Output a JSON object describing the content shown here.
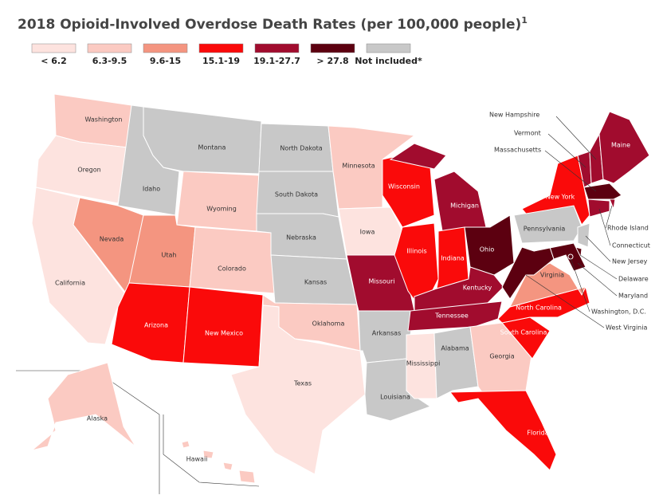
{
  "title": "2018 Opioid-Involved Overdose Death Rates (per 100,000 people)",
  "title_note": "1",
  "legend": [
    {
      "label": "< 6.2",
      "color": "#fde3df"
    },
    {
      "label": "6.3-9.5",
      "color": "#fbcac2"
    },
    {
      "label": "9.6-15",
      "color": "#f49580"
    },
    {
      "label": "15.1-19",
      "color": "#fa0a0a"
    },
    {
      "label": "19.1-27.7",
      "color": "#a10c2e"
    },
    {
      "label": "> 27.8",
      "color": "#5c0010"
    },
    {
      "label": "Not included*",
      "color": "#c8c8c8"
    }
  ],
  "states": [
    {
      "name": "Washington",
      "color": "#fbcac2"
    },
    {
      "name": "Oregon",
      "color": "#fde3df"
    },
    {
      "name": "California",
      "color": "#fde3df"
    },
    {
      "name": "Nevada",
      "color": "#f49580"
    },
    {
      "name": "Idaho",
      "color": "#c8c8c8"
    },
    {
      "name": "Montana",
      "color": "#c8c8c8"
    },
    {
      "name": "Wyoming",
      "color": "#fbcac2"
    },
    {
      "name": "Utah",
      "color": "#f49580"
    },
    {
      "name": "Colorado",
      "color": "#fbcac2"
    },
    {
      "name": "Arizona",
      "color": "#fa0a0a"
    },
    {
      "name": "New Mexico",
      "color": "#fa0a0a"
    },
    {
      "name": "North Dakota",
      "color": "#c8c8c8"
    },
    {
      "name": "South Dakota",
      "color": "#c8c8c8"
    },
    {
      "name": "Nebraska",
      "color": "#c8c8c8"
    },
    {
      "name": "Kansas",
      "color": "#c8c8c8"
    },
    {
      "name": "Oklahoma",
      "color": "#fbcac2"
    },
    {
      "name": "Texas",
      "color": "#fde3df"
    },
    {
      "name": "Minnesota",
      "color": "#fbcac2"
    },
    {
      "name": "Iowa",
      "color": "#fde3df"
    },
    {
      "name": "Missouri",
      "color": "#a10c2e"
    },
    {
      "name": "Arkansas",
      "color": "#c8c8c8"
    },
    {
      "name": "Louisiana",
      "color": "#c8c8c8"
    },
    {
      "name": "Wisconsin",
      "color": "#fa0a0a"
    },
    {
      "name": "Illinois",
      "color": "#fa0a0a"
    },
    {
      "name": "Michigan",
      "color": "#a10c2e"
    },
    {
      "name": "Indiana",
      "color": "#fa0a0a"
    },
    {
      "name": "Ohio",
      "color": "#5c0010"
    },
    {
      "name": "Kentucky",
      "color": "#a10c2e"
    },
    {
      "name": "Tennessee",
      "color": "#a10c2e"
    },
    {
      "name": "Mississippi",
      "color": "#fde3df"
    },
    {
      "name": "Alabama",
      "color": "#c8c8c8"
    },
    {
      "name": "Georgia",
      "color": "#fbcac2"
    },
    {
      "name": "Florida",
      "color": "#fa0a0a"
    },
    {
      "name": "South Carolina",
      "color": "#fa0a0a"
    },
    {
      "name": "North Carolina",
      "color": "#fa0a0a"
    },
    {
      "name": "Virginia",
      "color": "#f49580"
    },
    {
      "name": "West Virginia",
      "color": "#5c0010"
    },
    {
      "name": "Pennsylvania",
      "color": "#c8c8c8"
    },
    {
      "name": "New York",
      "color": "#fa0a0a"
    },
    {
      "name": "New Jersey",
      "color": "#c8c8c8"
    },
    {
      "name": "Delaware",
      "color": "#5c0010"
    },
    {
      "name": "Maryland",
      "color": "#5c0010"
    },
    {
      "name": "Vermont",
      "color": "#a10c2e"
    },
    {
      "name": "New Hampshire",
      "color": "#a10c2e"
    },
    {
      "name": "Maine",
      "color": "#a10c2e"
    },
    {
      "name": "Massachusetts",
      "color": "#5c0010"
    },
    {
      "name": "Rhode Island",
      "color": "#a10c2e"
    },
    {
      "name": "Connecticut",
      "color": "#a10c2e"
    },
    {
      "name": "Washington, D.C.",
      "color": "#5c0010"
    },
    {
      "name": "Alaska",
      "color": "#fbcac2"
    },
    {
      "name": "Hawaii",
      "color": "#fbcac2"
    }
  ]
}
